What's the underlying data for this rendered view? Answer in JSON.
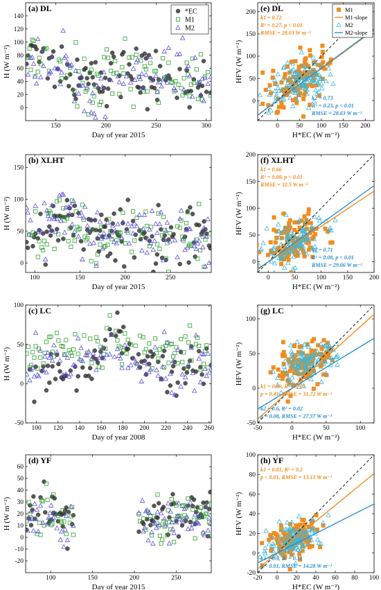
{
  "figure": {
    "colors": {
      "ec": "#3a3a3a",
      "m1_ts": "#2ca02c",
      "m2_ts": "#5b4fd6",
      "m1_sc": "#f28c1e",
      "m2_sc": "#2a8fcf",
      "m2_sc_marker": "#3fb6d6"
    }
  },
  "chart_data": [
    {
      "panel": "a",
      "type": "scatter",
      "title": "(a) DL",
      "xlabel": "Day of year 2015",
      "ylabel": "H (W m⁻²)",
      "xlim": [
        120,
        305
      ],
      "ylim": [
        -20,
        160
      ],
      "xticks": [
        150,
        200,
        250,
        300
      ],
      "yticks": [
        0,
        20,
        40,
        60,
        80,
        100,
        120,
        140
      ],
      "legend": [
        "*EC",
        "M1",
        "M2"
      ],
      "legend_position": "top-right",
      "noise": 22,
      "gap": null,
      "series": [
        {
          "name": "*EC",
          "marker": "circle",
          "color": "#3a3a3a",
          "trend": [
            [
              120,
              90
            ],
            [
              150,
              70
            ],
            [
              190,
              35
            ],
            [
              210,
              55
            ],
            [
              250,
              45
            ],
            [
              280,
              40
            ],
            [
              305,
              35
            ]
          ]
        },
        {
          "name": "M1",
          "marker": "square",
          "color": "#2ca02c",
          "trend": [
            [
              120,
              80
            ],
            [
              150,
              65
            ],
            [
              190,
              38
            ],
            [
              210,
              55
            ],
            [
              250,
              48
            ],
            [
              280,
              42
            ],
            [
              305,
              38
            ]
          ]
        },
        {
          "name": "M2",
          "marker": "triangle",
          "color": "#5b4fd6",
          "trend": [
            [
              120,
              70
            ],
            [
              150,
              55
            ],
            [
              190,
              35
            ],
            [
              210,
              50
            ],
            [
              250,
              45
            ],
            [
              280,
              45
            ],
            [
              305,
              40
            ]
          ]
        }
      ]
    },
    {
      "panel": "b",
      "type": "scatter",
      "title": "(b) XLHT",
      "xlabel": "Day of year 2015",
      "ylabel": "H (W m⁻²)",
      "xlim": [
        90,
        295
      ],
      "ylim": [
        -15,
        170
      ],
      "xticks": [
        100,
        150,
        200,
        250
      ],
      "yticks": [
        0,
        50,
        100,
        150
      ],
      "legend": null,
      "noise": 22,
      "gap": null,
      "series": [
        {
          "name": "*EC",
          "marker": "circle",
          "color": "#3a3a3a",
          "trend": [
            [
              90,
              50
            ],
            [
              130,
              70
            ],
            [
              170,
              45
            ],
            [
              210,
              55
            ],
            [
              250,
              40
            ],
            [
              295,
              35
            ]
          ]
        },
        {
          "name": "M1",
          "marker": "square",
          "color": "#2ca02c",
          "trend": [
            [
              90,
              45
            ],
            [
              130,
              60
            ],
            [
              170,
              45
            ],
            [
              210,
              50
            ],
            [
              250,
              40
            ],
            [
              295,
              35
            ]
          ]
        },
        {
          "name": "M2",
          "marker": "triangle",
          "color": "#5b4fd6",
          "trend": [
            [
              90,
              50
            ],
            [
              130,
              75
            ],
            [
              170,
              50
            ],
            [
              210,
              55
            ],
            [
              250,
              40
            ],
            [
              295,
              40
            ]
          ]
        }
      ]
    },
    {
      "panel": "c",
      "type": "scatter",
      "title": "(c) LC",
      "xlabel": "Day of year 2008",
      "ylabel": "H (W m⁻²)",
      "xlim": [
        90,
        262
      ],
      "ylim": [
        -50,
        100
      ],
      "xticks": [
        100,
        120,
        140,
        160,
        180,
        200,
        220,
        240,
        260
      ],
      "yticks": [
        -50,
        0,
        50,
        100
      ],
      "legend": null,
      "noise": 15,
      "gap": null,
      "series": [
        {
          "name": "*EC",
          "marker": "circle",
          "color": "#3a3a3a",
          "trend": [
            [
              90,
              5
            ],
            [
              120,
              15
            ],
            [
              140,
              10
            ],
            [
              170,
              55
            ],
            [
              200,
              25
            ],
            [
              230,
              10
            ],
            [
              262,
              15
            ]
          ]
        },
        {
          "name": "M1",
          "marker": "square",
          "color": "#2ca02c",
          "trend": [
            [
              90,
              30
            ],
            [
              120,
              40
            ],
            [
              150,
              45
            ],
            [
              175,
              50
            ],
            [
              200,
              35
            ],
            [
              230,
              40
            ],
            [
              262,
              45
            ]
          ]
        },
        {
          "name": "M2",
          "marker": "triangle",
          "color": "#5b4fd6",
          "trend": [
            [
              90,
              20
            ],
            [
              120,
              30
            ],
            [
              150,
              30
            ],
            [
              175,
              35
            ],
            [
              200,
              30
            ],
            [
              230,
              30
            ],
            [
              262,
              30
            ]
          ]
        }
      ]
    },
    {
      "panel": "d",
      "type": "scatter",
      "title": "(d) YF",
      "xlabel": "Day of year 2015",
      "ylabel": "H (W m⁻²)",
      "xlim": [
        70,
        292
      ],
      "ylim": [
        -30,
        70
      ],
      "xticks": [
        100,
        150,
        200,
        250
      ],
      "yticks": [
        -20,
        -10,
        0,
        10,
        20,
        30,
        40,
        50,
        60
      ],
      "legend": null,
      "noise": 10,
      "gap": [
        128,
        205
      ],
      "series": [
        {
          "name": "*EC",
          "marker": "circle",
          "color": "#3a3a3a",
          "trend": [
            [
              70,
              20
            ],
            [
              100,
              25
            ],
            [
              128,
              15
            ],
            [
              205,
              15
            ],
            [
              240,
              12
            ],
            [
              292,
              20
            ]
          ]
        },
        {
          "name": "M1",
          "marker": "square",
          "color": "#2ca02c",
          "trend": [
            [
              70,
              15
            ],
            [
              100,
              25
            ],
            [
              128,
              10
            ],
            [
              205,
              15
            ],
            [
              240,
              18
            ],
            [
              292,
              20
            ]
          ]
        },
        {
          "name": "M2",
          "marker": "triangle",
          "color": "#5b4fd6",
          "trend": [
            [
              70,
              12
            ],
            [
              100,
              20
            ],
            [
              128,
              10
            ],
            [
              205,
              12
            ],
            [
              240,
              12
            ],
            [
              292,
              15
            ]
          ]
        }
      ]
    },
    {
      "panel": "e",
      "type": "scatter",
      "title": "(e) DL",
      "xlabel": "H*EC (W m⁻²)",
      "ylabel": "HFV (W m⁻²)",
      "xlim": [
        -45,
        220
      ],
      "ylim": [
        -45,
        220
      ],
      "xticks": [
        0,
        50,
        100,
        150,
        200
      ],
      "yticks": [
        0,
        50,
        100,
        150,
        200
      ],
      "legend": [
        "M1",
        "M1-slope",
        "M2",
        "M2-slope"
      ],
      "legend_position": "top-right",
      "one_to_one": true,
      "m1_slope": 0.72,
      "m2_slope": 0.73,
      "cloud": {
        "cx": 50,
        "cy": 45,
        "sx": 32,
        "sy": 28
      },
      "stats": {
        "m1": [
          "k1 = 0.72",
          "R² = 0.27, p < 0.01",
          "RMSE = 28.03 W m⁻²"
        ],
        "m2": [
          "k2 = 0.73",
          "R² = 0.23, p < 0.01",
          "RMSE = 28.63 W m⁻²"
        ]
      }
    },
    {
      "panel": "f",
      "type": "scatter",
      "title": "(f) XLHT",
      "xlabel": "H*EC (W m⁻²)",
      "ylabel": "HFV (W m⁻²)",
      "xlim": [
        -20,
        200
      ],
      "ylim": [
        -20,
        200
      ],
      "xticks": [
        0,
        50,
        100,
        150,
        200
      ],
      "yticks": [
        0,
        50,
        100,
        150,
        200
      ],
      "legend": null,
      "one_to_one": true,
      "m1_slope": 0.66,
      "m2_slope": 0.71,
      "cloud": {
        "cx": 45,
        "cy": 35,
        "sx": 28,
        "sy": 22
      },
      "stats": {
        "m1": [
          "k1 = 0.66",
          "R² = 0.08, p < 0.01",
          "RMSE = 32.5 W m⁻²"
        ],
        "m2": [
          "k2 = 0.71",
          "R² = 0.08, p < 0.01",
          "RMSE = 29.06 W m⁻²"
        ]
      }
    },
    {
      "panel": "g",
      "type": "scatter",
      "title": "(g) LC",
      "xlabel": "H*EC (W m⁻²)",
      "ylabel": "HFV (W m⁻²)",
      "xlim": [
        -50,
        120
      ],
      "ylim": [
        -50,
        120
      ],
      "xticks": [
        -50,
        0,
        50,
        100
      ],
      "yticks": [
        -50,
        0,
        50,
        100
      ],
      "legend": null,
      "one_to_one": true,
      "m1_slope": 0.89,
      "m2_slope": 0.6,
      "cloud": {
        "cx": 20,
        "cy": 35,
        "sx": 22,
        "sy": 15
      },
      "stats": {
        "m1": [
          "k1 = 0.89, R² = 0.01",
          "p = 0.41, RMSE = 31.72 W m⁻²"
        ],
        "m2": [
          "k2 = 0.6, R² = 0.02",
          "p = 0.08, RMSE = 27.37 W m⁻²"
        ]
      }
    },
    {
      "panel": "h",
      "type": "scatter",
      "title": "(h) YF",
      "xlabel": "H*EC (W m⁻²)",
      "ylabel": "HFV (W m⁻²)",
      "xlim": [
        -20,
        100
      ],
      "ylim": [
        -20,
        100
      ],
      "xticks": [
        -20,
        0,
        20,
        40,
        60,
        80,
        100
      ],
      "yticks": [
        -20,
        0,
        20,
        40,
        60,
        80,
        100
      ],
      "legend": null,
      "one_to_one": true,
      "m1_slope": 0.81,
      "m2_slope": 0.5,
      "cloud": {
        "cx": 18,
        "cy": 15,
        "sx": 14,
        "sy": 9
      },
      "stats": {
        "m1": [
          "k1 = 0.81, R² = 0.2",
          "p < 0.01, RMSE = 13.13 W m⁻²"
        ],
        "m2": [
          "k2 = 0.5, R² = 0.11",
          "p < 0.01, RMSE = 14.28 W m⁻²"
        ]
      }
    }
  ]
}
